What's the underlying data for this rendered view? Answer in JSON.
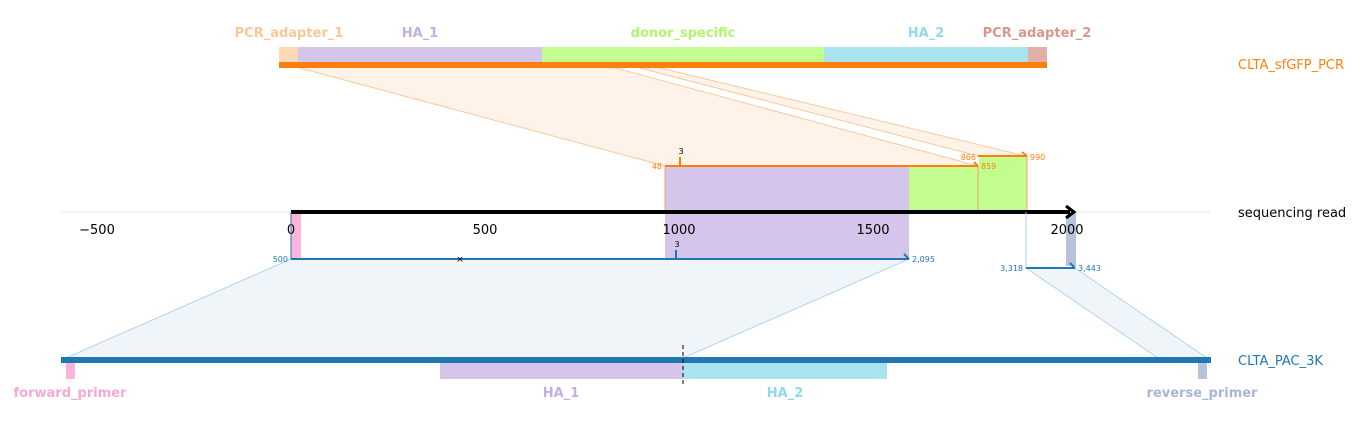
{
  "top_reference": {
    "name": "CLTA_sfGFP_PCR",
    "color": "#ff7f0e",
    "features": [
      {
        "label": "PCR_adapter_1",
        "color": "#fdd9b5",
        "label_color": "#f9c89a"
      },
      {
        "label": "HA_1",
        "color": "#d5c5ea",
        "label_color": "#c3aee0"
      },
      {
        "label": "donor_specific",
        "color": "#c4fd8f",
        "label_color": "#b2f56e"
      },
      {
        "label": "HA_2",
        "color": "#aae3ef",
        "label_color": "#8fd9ea"
      },
      {
        "label": "PCR_adapter_2",
        "color": "#e2b0a8",
        "label_color": "#d9978c"
      }
    ]
  },
  "read": {
    "name": "sequencing read",
    "axis_ticks": [
      "−500",
      "0",
      "500",
      "1000",
      "1500",
      "2000"
    ],
    "top_alignments": {
      "labels": [
        "48",
        "3",
        "866",
        "859",
        "990"
      ]
    },
    "bottom_alignments": {
      "labels": [
        "500",
        "3",
        "2,095",
        "3,318",
        "3,443"
      ]
    }
  },
  "bottom_reference": {
    "name": "CLTA_PAC_3K",
    "color": "#1f77b4",
    "features": [
      {
        "label": "forward_primer",
        "color": "#fdb4dc",
        "label_color": "#f7a8d5"
      },
      {
        "label": "HA_1",
        "color": "#d5c5ea",
        "label_color": "#c3aee0"
      },
      {
        "label": "HA_2",
        "color": "#aae3ef",
        "label_color": "#8fd9ea"
      },
      {
        "label": "reverse_primer",
        "color": "#b7c3dc",
        "label_color": "#a8b6d3"
      }
    ]
  }
}
